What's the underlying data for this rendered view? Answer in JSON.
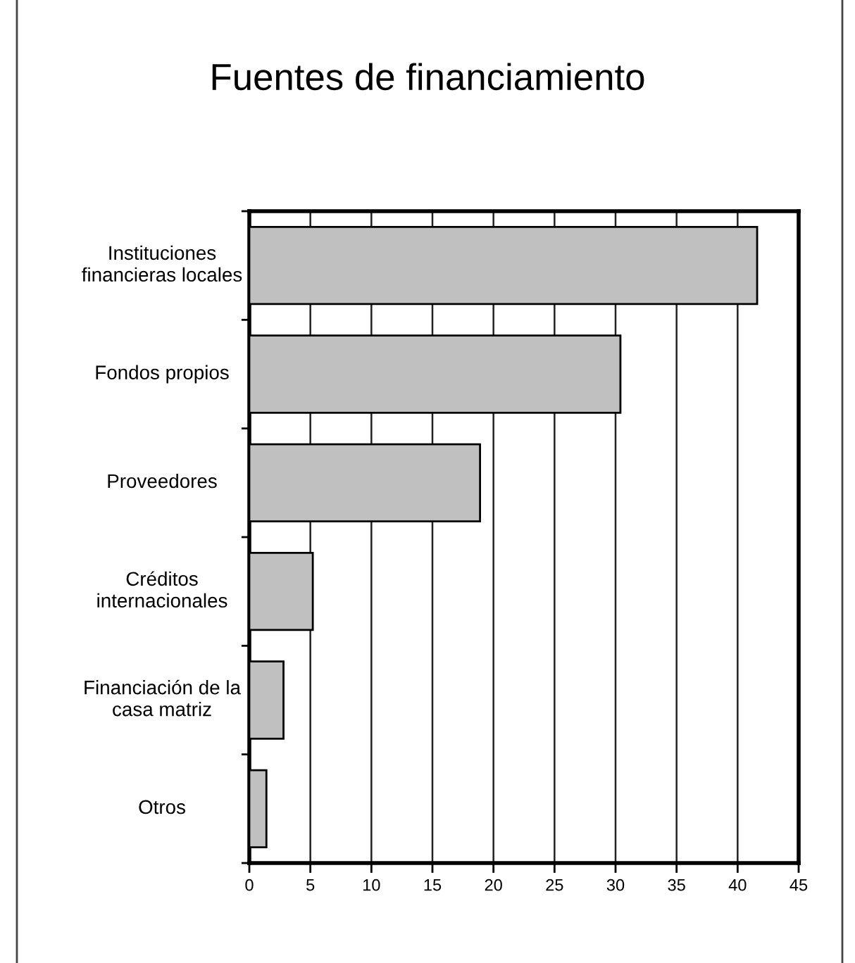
{
  "chart_data": {
    "type": "bar",
    "orientation": "horizontal",
    "title": "Fuentes de financiamiento",
    "categories": [
      "Instituciones\nfinancieras locales",
      "Fondos propios",
      "Proveedores",
      "Créditos\ninternacionales",
      "Financiación de la\ncasa matriz",
      "Otros"
    ],
    "values": [
      41.6,
      30.4,
      18.9,
      5.2,
      2.8,
      1.4
    ],
    "color": "#c0c0c0",
    "xlim": [
      0,
      45
    ],
    "xticks": [
      0,
      5,
      10,
      15,
      20,
      25,
      30,
      35,
      40,
      45
    ],
    "grid": "x"
  }
}
